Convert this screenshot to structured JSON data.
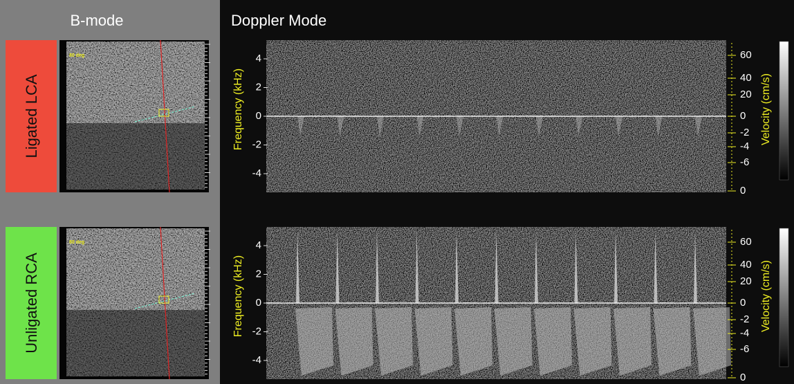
{
  "header": {
    "bmode": "B-mode",
    "doppler": "Doppler Mode"
  },
  "panels": [
    {
      "label": "Ligated LCA",
      "angle": "80 deg",
      "frequency_label": "Frequency (kHz)",
      "frequency_ticks": [
        4,
        2,
        0,
        -2,
        -4
      ],
      "velocity_label": "Velocity (cm/s)",
      "velocity_ticks": [
        60,
        40,
        20,
        0,
        -2,
        -4,
        -6,
        0
      ]
    },
    {
      "label": "Unligated RCA",
      "angle": "80 deg",
      "frequency_label": "Frequency (kHz)",
      "frequency_ticks": [
        4,
        2,
        0,
        -2,
        -4
      ],
      "velocity_label": "Velocity (cm/s)",
      "velocity_ticks": [
        60,
        40,
        20,
        0,
        -2,
        -4,
        -6,
        0
      ]
    }
  ]
}
